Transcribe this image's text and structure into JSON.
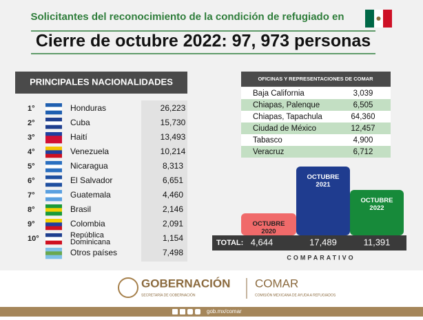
{
  "header": {
    "title": "Solicitantes del reconocimiento de la condición de refugiado en",
    "subtitle": "Cierre de octubre 2022: 97, 973 personas"
  },
  "nationalities": {
    "title": "PRINCIPALES NACIONALIDADES",
    "rows": [
      [
        "1°",
        "Honduras",
        "26,223"
      ],
      [
        "2°",
        "Cuba",
        "15,730"
      ],
      [
        "3°",
        "Haití",
        "13,493"
      ],
      [
        "4°",
        "Venezuela",
        "10,214"
      ],
      [
        "5°",
        "Nicaragua",
        "8,313"
      ],
      [
        "6°",
        "El Salvador",
        "6,651"
      ],
      [
        "7°",
        "Guatemala",
        "4,460"
      ],
      [
        "8°",
        "Brasil",
        "2,146"
      ],
      [
        "9°",
        "Colombia",
        "2,091"
      ],
      [
        "10°",
        "República Dominicana",
        "1,154"
      ],
      [
        "",
        "Otros países",
        "7,498"
      ]
    ]
  },
  "offices": {
    "title": "OFICINAS Y REPRESENTACIONES DE COMAR",
    "rows": [
      [
        "Baja California",
        "3,039"
      ],
      [
        "Chiapas, Palenque",
        "6,505"
      ],
      [
        "Chiapas, Tapachula",
        "64,360"
      ],
      [
        "Ciudad de México",
        "12,457"
      ],
      [
        "Tabasco",
        "4,900"
      ],
      [
        "Veracruz",
        "6,712"
      ]
    ]
  },
  "comparison": {
    "total_label": "TOTAL:",
    "caption": "COMPARATIVO",
    "bars": [
      [
        "OCTUBRE 2020",
        "4,644"
      ],
      [
        "OCTUBRE 2021",
        "17,489"
      ],
      [
        "OCTUBRE 2022",
        "11,391"
      ]
    ]
  },
  "footer": {
    "left_logo": "GOBERNACIÓN",
    "left_sub": "SECRETARÍA DE GOBERNACIÓN",
    "right_logo": "COMAR",
    "right_sub": "COMISIÓN MEXICANA DE AYUDA A REFUGIADOS",
    "link": "gob.mx/comar"
  }
}
